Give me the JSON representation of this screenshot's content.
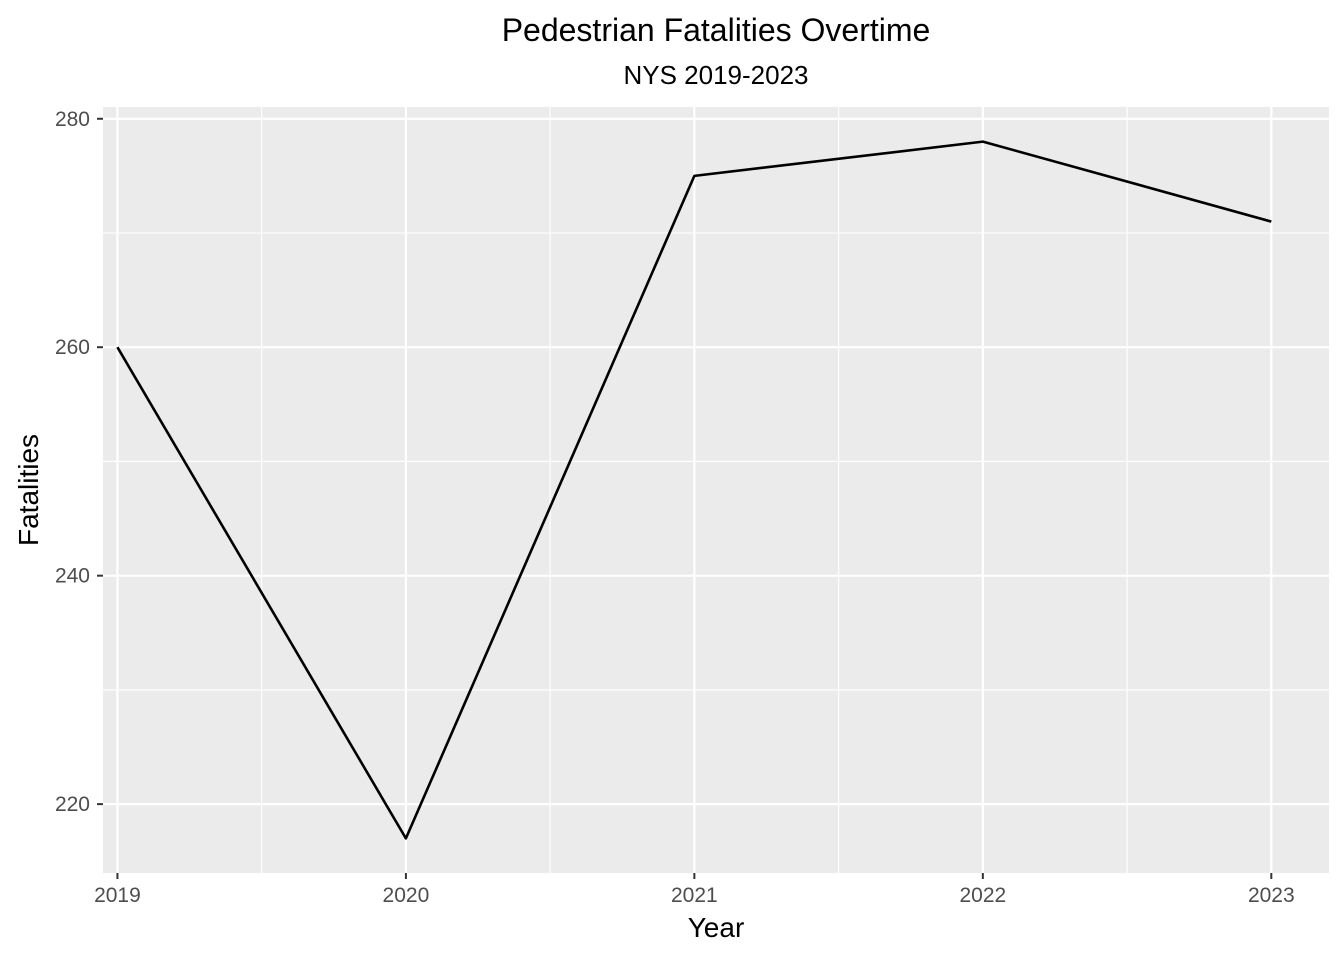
{
  "chart_data": {
    "type": "line",
    "title": "Pedestrian Fatalities Overtime",
    "subtitle": "NYS 2019-2023",
    "xlabel": "Year",
    "ylabel": "Fatalities",
    "x": [
      2019,
      2020,
      2021,
      2022,
      2023
    ],
    "series": [
      {
        "values": [
          260,
          217,
          275,
          278,
          271
        ]
      }
    ],
    "xticks": [
      2019,
      2020,
      2021,
      2022,
      2023
    ],
    "xtick_labels": [
      "2019",
      "2020",
      "2021",
      "2022",
      "2023"
    ],
    "yticks": [
      220,
      240,
      260,
      280
    ],
    "ytick_labels": [
      "220",
      "240",
      "260",
      "280"
    ],
    "xlim": [
      2018.95,
      2023.2
    ],
    "ylim": [
      213.97,
      281.03
    ],
    "grid": true,
    "legend": "none",
    "colors": {
      "panel_background": "#ebebeb",
      "grid_major": "#ffffff",
      "grid_minor": "#ffffff",
      "line": "#000000",
      "tick_text": "#4d4d4d",
      "axis_ticks": "#333333"
    }
  }
}
